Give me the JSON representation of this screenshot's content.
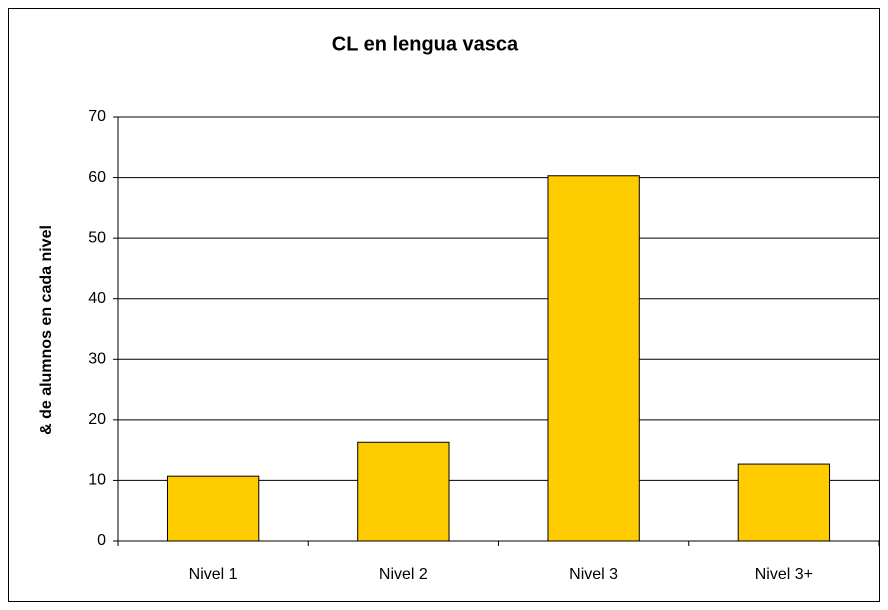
{
  "chart_data": {
    "type": "bar",
    "title": "CL en lengua vasca",
    "y_axis_label": "& de alumnos en cada nivel",
    "categories": [
      "Nivel 1",
      "Nivel 2",
      "Nivel 3",
      "Nivel 3+"
    ],
    "values": [
      10.7,
      16.3,
      60.3,
      12.7
    ],
    "color": "#ffcc00",
    "ylim": [
      0,
      70
    ],
    "yticks": [
      0,
      10,
      20,
      30,
      40,
      50,
      60,
      70
    ],
    "grid": true
  }
}
